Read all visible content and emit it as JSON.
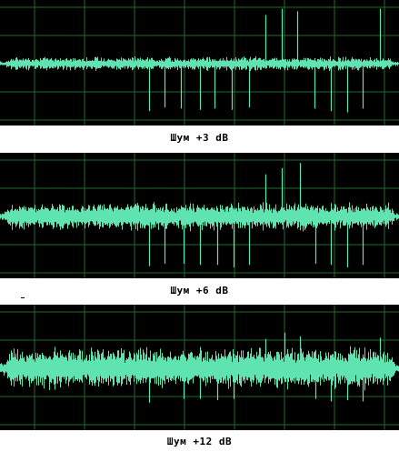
{
  "colors": {
    "background": "#000000",
    "grid": "#1f6b2a",
    "signal": "#5fe3b0",
    "caption": "#000000"
  },
  "panels": [
    {
      "caption": "Шум +3 dB",
      "noise_amplitude": 0.06,
      "spikes_up": [
        0.665,
        0.707,
        0.746,
        0.952
      ],
      "spikes_up_heights": [
        0.37,
        0.42,
        0.4,
        0.42
      ],
      "spikes_down": [
        0.373,
        0.412,
        0.453,
        0.5,
        0.538,
        0.58,
        0.624,
        0.789,
        0.829,
        0.87,
        0.91
      ],
      "spikes_down_heights": [
        0.36,
        0.33,
        0.34,
        0.35,
        0.34,
        0.35,
        0.33,
        0.34,
        0.36,
        0.37,
        0.34
      ]
    },
    {
      "caption": "Шум +6 dB",
      "noise_amplitude": 0.12,
      "spikes_up": [
        0.665,
        0.707,
        0.752
      ],
      "spikes_up_heights": [
        0.3,
        0.35,
        0.39
      ],
      "spikes_down": [
        0.373,
        0.412,
        0.46,
        0.5,
        0.544,
        0.585,
        0.625,
        0.79,
        0.829,
        0.87,
        0.91
      ],
      "spikes_down_heights": [
        0.36,
        0.34,
        0.34,
        0.35,
        0.35,
        0.37,
        0.35,
        0.34,
        0.35,
        0.37,
        0.35
      ]
    },
    {
      "caption": "Шум +12 dB",
      "noise_amplitude": 0.18,
      "spikes_up": [
        0.665,
        0.712,
        0.752,
        0.952
      ],
      "spikes_up_heights": [
        0.18,
        0.23,
        0.2,
        0.19
      ],
      "spikes_down": [
        0.373,
        0.46,
        0.5,
        0.544,
        0.585,
        0.79,
        0.829,
        0.87,
        0.91
      ],
      "spikes_down_heights": [
        0.22,
        0.19,
        0.19,
        0.2,
        0.19,
        0.19,
        0.21,
        0.2,
        0.21
      ]
    }
  ]
}
